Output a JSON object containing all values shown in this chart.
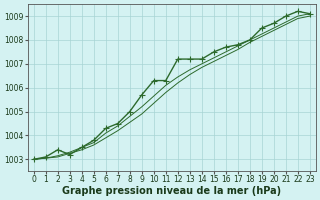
{
  "title": "Graphe pression niveau de la mer (hPa)",
  "x_labels": [
    "0",
    "1",
    "2",
    "3",
    "4",
    "5",
    "6",
    "7",
    "8",
    "9",
    "10",
    "11",
    "12",
    "13",
    "14",
    "15",
    "16",
    "17",
    "18",
    "19",
    "20",
    "21",
    "22",
    "23"
  ],
  "ylim": [
    1002.5,
    1009.5
  ],
  "yticks": [
    1003,
    1004,
    1005,
    1006,
    1007,
    1008,
    1009
  ],
  "series": [
    {
      "name": "marker_line",
      "values": [
        1003.0,
        1003.1,
        1003.4,
        1003.2,
        1003.5,
        1003.8,
        1004.3,
        1004.5,
        1005.0,
        1005.7,
        1006.3,
        1006.3,
        1007.2,
        1007.2,
        1007.2,
        1007.5,
        1007.7,
        1007.8,
        1008.0,
        1008.5,
        1008.7,
        1009.0,
        1009.2,
        1009.1
      ],
      "color": "#2d6a2d",
      "marker": "+",
      "markersize": 4,
      "linewidth": 1.0
    },
    {
      "name": "upper_line",
      "values": [
        1003.0,
        1003.05,
        1003.15,
        1003.3,
        1003.5,
        1003.7,
        1004.1,
        1004.4,
        1004.8,
        1005.2,
        1005.65,
        1006.1,
        1006.45,
        1006.75,
        1007.0,
        1007.25,
        1007.5,
        1007.75,
        1008.0,
        1008.25,
        1008.5,
        1008.75,
        1009.0,
        1009.1
      ],
      "color": "#2d6a2d",
      "marker": null,
      "linewidth": 0.7
    },
    {
      "name": "lower_line",
      "values": [
        1003.0,
        1003.05,
        1003.1,
        1003.25,
        1003.4,
        1003.6,
        1003.9,
        1004.2,
        1004.55,
        1004.9,
        1005.35,
        1005.8,
        1006.2,
        1006.55,
        1006.85,
        1007.1,
        1007.35,
        1007.6,
        1007.9,
        1008.15,
        1008.4,
        1008.65,
        1008.9,
        1009.0
      ],
      "color": "#2d6a2d",
      "marker": null,
      "linewidth": 0.7
    }
  ],
  "bg_color": "#d4f2f2",
  "grid_color": "#a8d4d4",
  "axis_color": "#555555",
  "label_color": "#1a3a1a",
  "title_fontsize": 7.0,
  "tick_fontsize": 5.5
}
